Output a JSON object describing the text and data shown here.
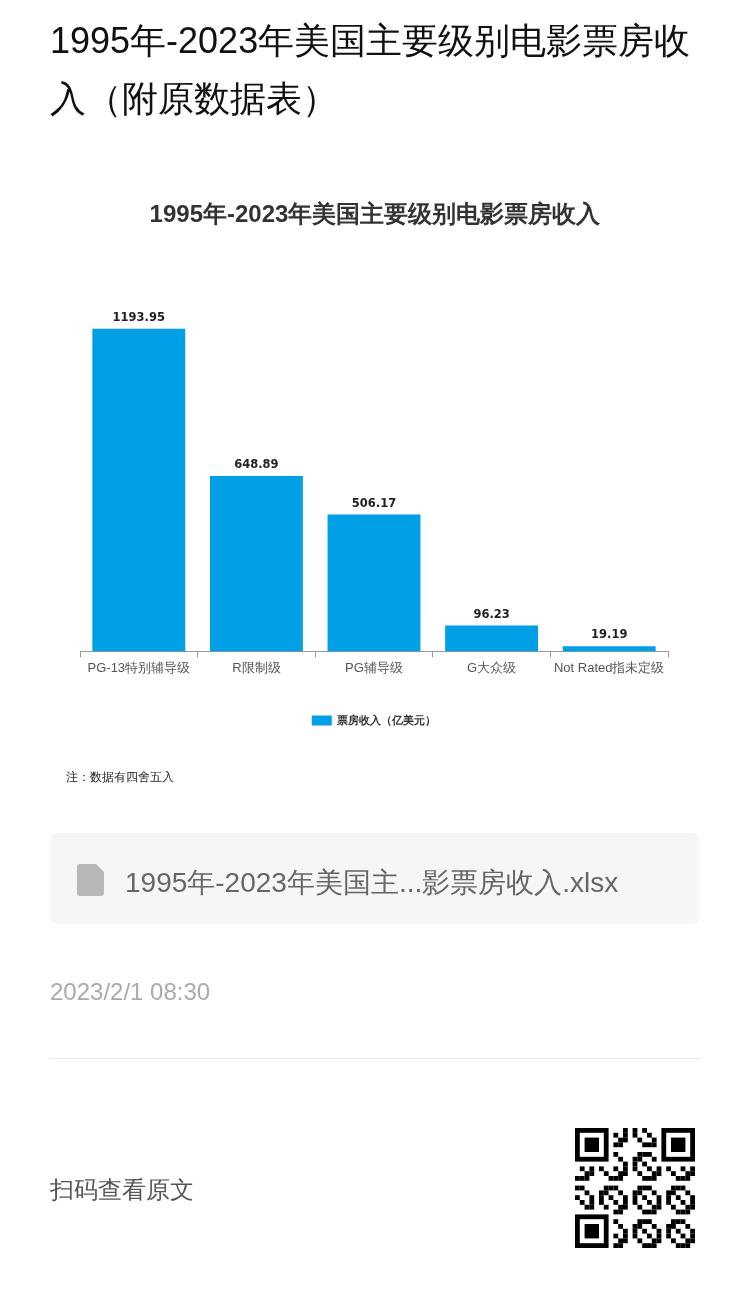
{
  "chart_data": {
    "type": "bar",
    "title": "1995年-2023年美国主要级别电影票房收入",
    "categories": [
      "PG-13特别辅导级",
      "R限制级",
      "PG辅导级",
      "G大众级",
      "Not Rated指未定级"
    ],
    "series": [
      {
        "name": "票房收入（亿美元）",
        "color": "#019fe6",
        "values": [
          1193.95,
          648.89,
          506.17,
          96.23,
          19.19
        ]
      }
    ],
    "data_labels": true,
    "legend": "bottom",
    "tick_labels": "x",
    "annotations": [
      "1995年-2023年美国主要级别电影票房收入（附原数据表）",
      "注：数据有四舍五入",
      "1995年-2023年美国主...影票房收入.xlsx",
      "2023/2/1 08:30",
      "扫码查看原文"
    ]
  }
}
